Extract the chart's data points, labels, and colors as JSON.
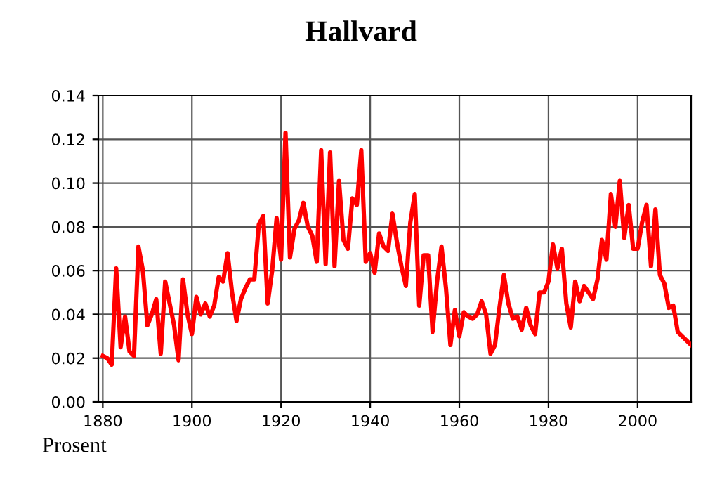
{
  "chart_data": {
    "type": "line",
    "title": "Hallvard",
    "ylabel": "Prosent",
    "x": [
      1880,
      1881,
      1882,
      1883,
      1884,
      1885,
      1886,
      1887,
      1888,
      1889,
      1890,
      1891,
      1892,
      1893,
      1894,
      1895,
      1896,
      1897,
      1898,
      1899,
      1900,
      1901,
      1902,
      1903,
      1904,
      1905,
      1906,
      1907,
      1908,
      1909,
      1910,
      1911,
      1912,
      1913,
      1914,
      1915,
      1916,
      1917,
      1918,
      1919,
      1920,
      1921,
      1922,
      1923,
      1924,
      1925,
      1926,
      1927,
      1928,
      1929,
      1930,
      1931,
      1932,
      1933,
      1934,
      1935,
      1936,
      1937,
      1938,
      1939,
      1940,
      1941,
      1942,
      1943,
      1944,
      1945,
      1946,
      1947,
      1948,
      1949,
      1950,
      1951,
      1952,
      1953,
      1954,
      1955,
      1956,
      1957,
      1958,
      1959,
      1960,
      1961,
      1962,
      1963,
      1964,
      1965,
      1966,
      1967,
      1968,
      1969,
      1970,
      1971,
      1972,
      1973,
      1974,
      1975,
      1976,
      1977,
      1978,
      1979,
      1980,
      1981,
      1982,
      1983,
      1984,
      1985,
      1986,
      1987,
      1988,
      1989,
      1990,
      1991,
      1992,
      1993,
      1994,
      1995,
      1996,
      1997,
      1998,
      1999,
      2000,
      2001,
      2002,
      2003,
      2004,
      2005,
      2006,
      2007,
      2008,
      2009,
      2010,
      2011,
      2012
    ],
    "series": [
      {
        "color": "#ff0000",
        "values": [
          0.021,
          0.02,
          0.017,
          0.061,
          0.025,
          0.039,
          0.023,
          0.021,
          0.071,
          0.06,
          0.035,
          0.04,
          0.047,
          0.022,
          0.055,
          0.045,
          0.035,
          0.019,
          0.056,
          0.04,
          0.031,
          0.048,
          0.04,
          0.045,
          0.039,
          0.044,
          0.057,
          0.055,
          0.068,
          0.05,
          0.037,
          0.047,
          0.052,
          0.056,
          0.056,
          0.081,
          0.085,
          0.045,
          0.06,
          0.084,
          0.065,
          0.123,
          0.066,
          0.079,
          0.083,
          0.091,
          0.08,
          0.076,
          0.064,
          0.115,
          0.063,
          0.114,
          0.062,
          0.101,
          0.074,
          0.07,
          0.093,
          0.09,
          0.115,
          0.064,
          0.068,
          0.059,
          0.077,
          0.071,
          0.069,
          0.086,
          0.073,
          0.062,
          0.053,
          0.082,
          0.095,
          0.044,
          0.067,
          0.067,
          0.032,
          0.055,
          0.071,
          0.052,
          0.026,
          0.042,
          0.03,
          0.041,
          0.039,
          0.038,
          0.04,
          0.046,
          0.04,
          0.022,
          0.026,
          0.043,
          0.058,
          0.045,
          0.038,
          0.039,
          0.033,
          0.043,
          0.035,
          0.031,
          0.05,
          0.05,
          0.055,
          0.072,
          0.061,
          0.07,
          0.045,
          0.034,
          0.055,
          0.046,
          0.053,
          0.05,
          0.047,
          0.056,
          0.074,
          0.065,
          0.095,
          0.08,
          0.101,
          0.075,
          0.09,
          0.07,
          0.07,
          0.082,
          0.09,
          0.062,
          0.088,
          0.058,
          0.054,
          0.043,
          0.044,
          0.032,
          0.03,
          0.028,
          0.026
        ]
      }
    ],
    "xlim": [
      1879,
      2012
    ],
    "xticks": [
      1880,
      1900,
      1920,
      1940,
      1960,
      1980,
      2000
    ],
    "ylim": [
      0,
      0.14
    ],
    "yticks": [
      {
        "value": 0,
        "label": "0.00"
      },
      {
        "value": 0.02,
        "label": "0.02"
      },
      {
        "value": 0.04,
        "label": "0.04"
      },
      {
        "value": 0.06,
        "label": "0.06"
      },
      {
        "value": 0.08,
        "label": "0.08"
      },
      {
        "value": 0.1,
        "label": "0.10"
      },
      {
        "value": 0.12,
        "label": "0.12"
      },
      {
        "value": 0.14,
        "label": "0.14"
      }
    ],
    "grid": true,
    "line_style": "solid",
    "marker": "none"
  }
}
